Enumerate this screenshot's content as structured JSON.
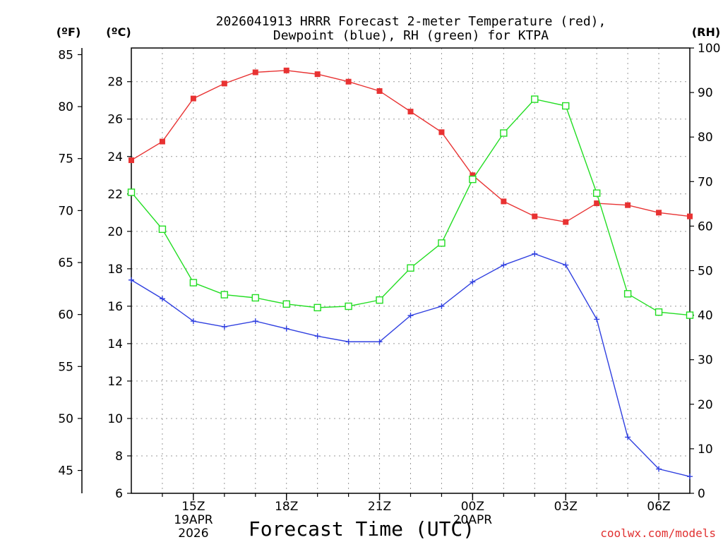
{
  "chart_data": {
    "type": "line",
    "title_line1": "2026041913 HRRR Forecast 2-meter Temperature (red),",
    "title_line2": "Dewpoint (blue), RH (green) for KTPA",
    "left_outer_label": "(ºF)",
    "left_inner_label": "(ºC)",
    "right_label": "(RH)",
    "xlabel": "Forecast Time (UTC)",
    "credit": "coolwx.com/models",
    "x_range": [
      13,
      31
    ],
    "y_celsius_range": [
      6,
      29.8
    ],
    "y_fahrenheit_range": [
      42.8,
      85.64
    ],
    "y_rh_range": [
      0,
      100
    ],
    "f_ticks": [
      45,
      50,
      55,
      60,
      65,
      70,
      75,
      80,
      85
    ],
    "c_ticks": [
      6,
      8,
      10,
      12,
      14,
      16,
      18,
      20,
      22,
      24,
      26,
      28
    ],
    "rh_ticks": [
      0,
      10,
      20,
      30,
      40,
      50,
      60,
      70,
      80,
      90,
      100
    ],
    "x_ticks": [
      {
        "x": 15,
        "label": "15Z",
        "sub1": "19APR",
        "sub2": "2026"
      },
      {
        "x": 18,
        "label": "18Z",
        "sub1": "",
        "sub2": ""
      },
      {
        "x": 21,
        "label": "21Z",
        "sub1": "",
        "sub2": ""
      },
      {
        "x": 24,
        "label": "00Z",
        "sub1": "20APR",
        "sub2": ""
      },
      {
        "x": 27,
        "label": "03Z",
        "sub1": "",
        "sub2": ""
      },
      {
        "x": 30,
        "label": "06Z",
        "sub1": "",
        "sub2": ""
      }
    ],
    "x": [
      13,
      14,
      15,
      16,
      17,
      18,
      19,
      20,
      21,
      22,
      23,
      24,
      25,
      26,
      27,
      28,
      29,
      30,
      31
    ],
    "series": [
      {
        "name": "Temperature",
        "axis": "celsius",
        "color": "#e83232",
        "marker": "filled-square",
        "values": [
          23.8,
          24.8,
          27.1,
          27.9,
          28.5,
          28.6,
          28.4,
          28.0,
          27.5,
          26.4,
          25.3,
          23.0,
          21.6,
          20.8,
          20.5,
          21.5,
          21.4,
          21.0,
          20.8
        ]
      },
      {
        "name": "Dewpoint",
        "axis": "celsius",
        "color": "#3040e0",
        "marker": "plus",
        "values": [
          17.4,
          16.4,
          15.2,
          14.9,
          15.2,
          14.8,
          14.4,
          14.1,
          14.1,
          15.5,
          16.0,
          17.3,
          18.2,
          18.8,
          18.2,
          15.3,
          9.0,
          7.3,
          6.9
        ]
      },
      {
        "name": "RH",
        "axis": "rh",
        "color": "#22dd22",
        "marker": "open-square",
        "values": [
          67.6,
          59.3,
          47.3,
          44.6,
          43.9,
          42.5,
          41.7,
          42.0,
          43.4,
          50.6,
          56.2,
          70.5,
          80.9,
          88.5,
          87.0,
          67.4,
          44.8,
          40.7,
          40.0
        ]
      }
    ]
  }
}
